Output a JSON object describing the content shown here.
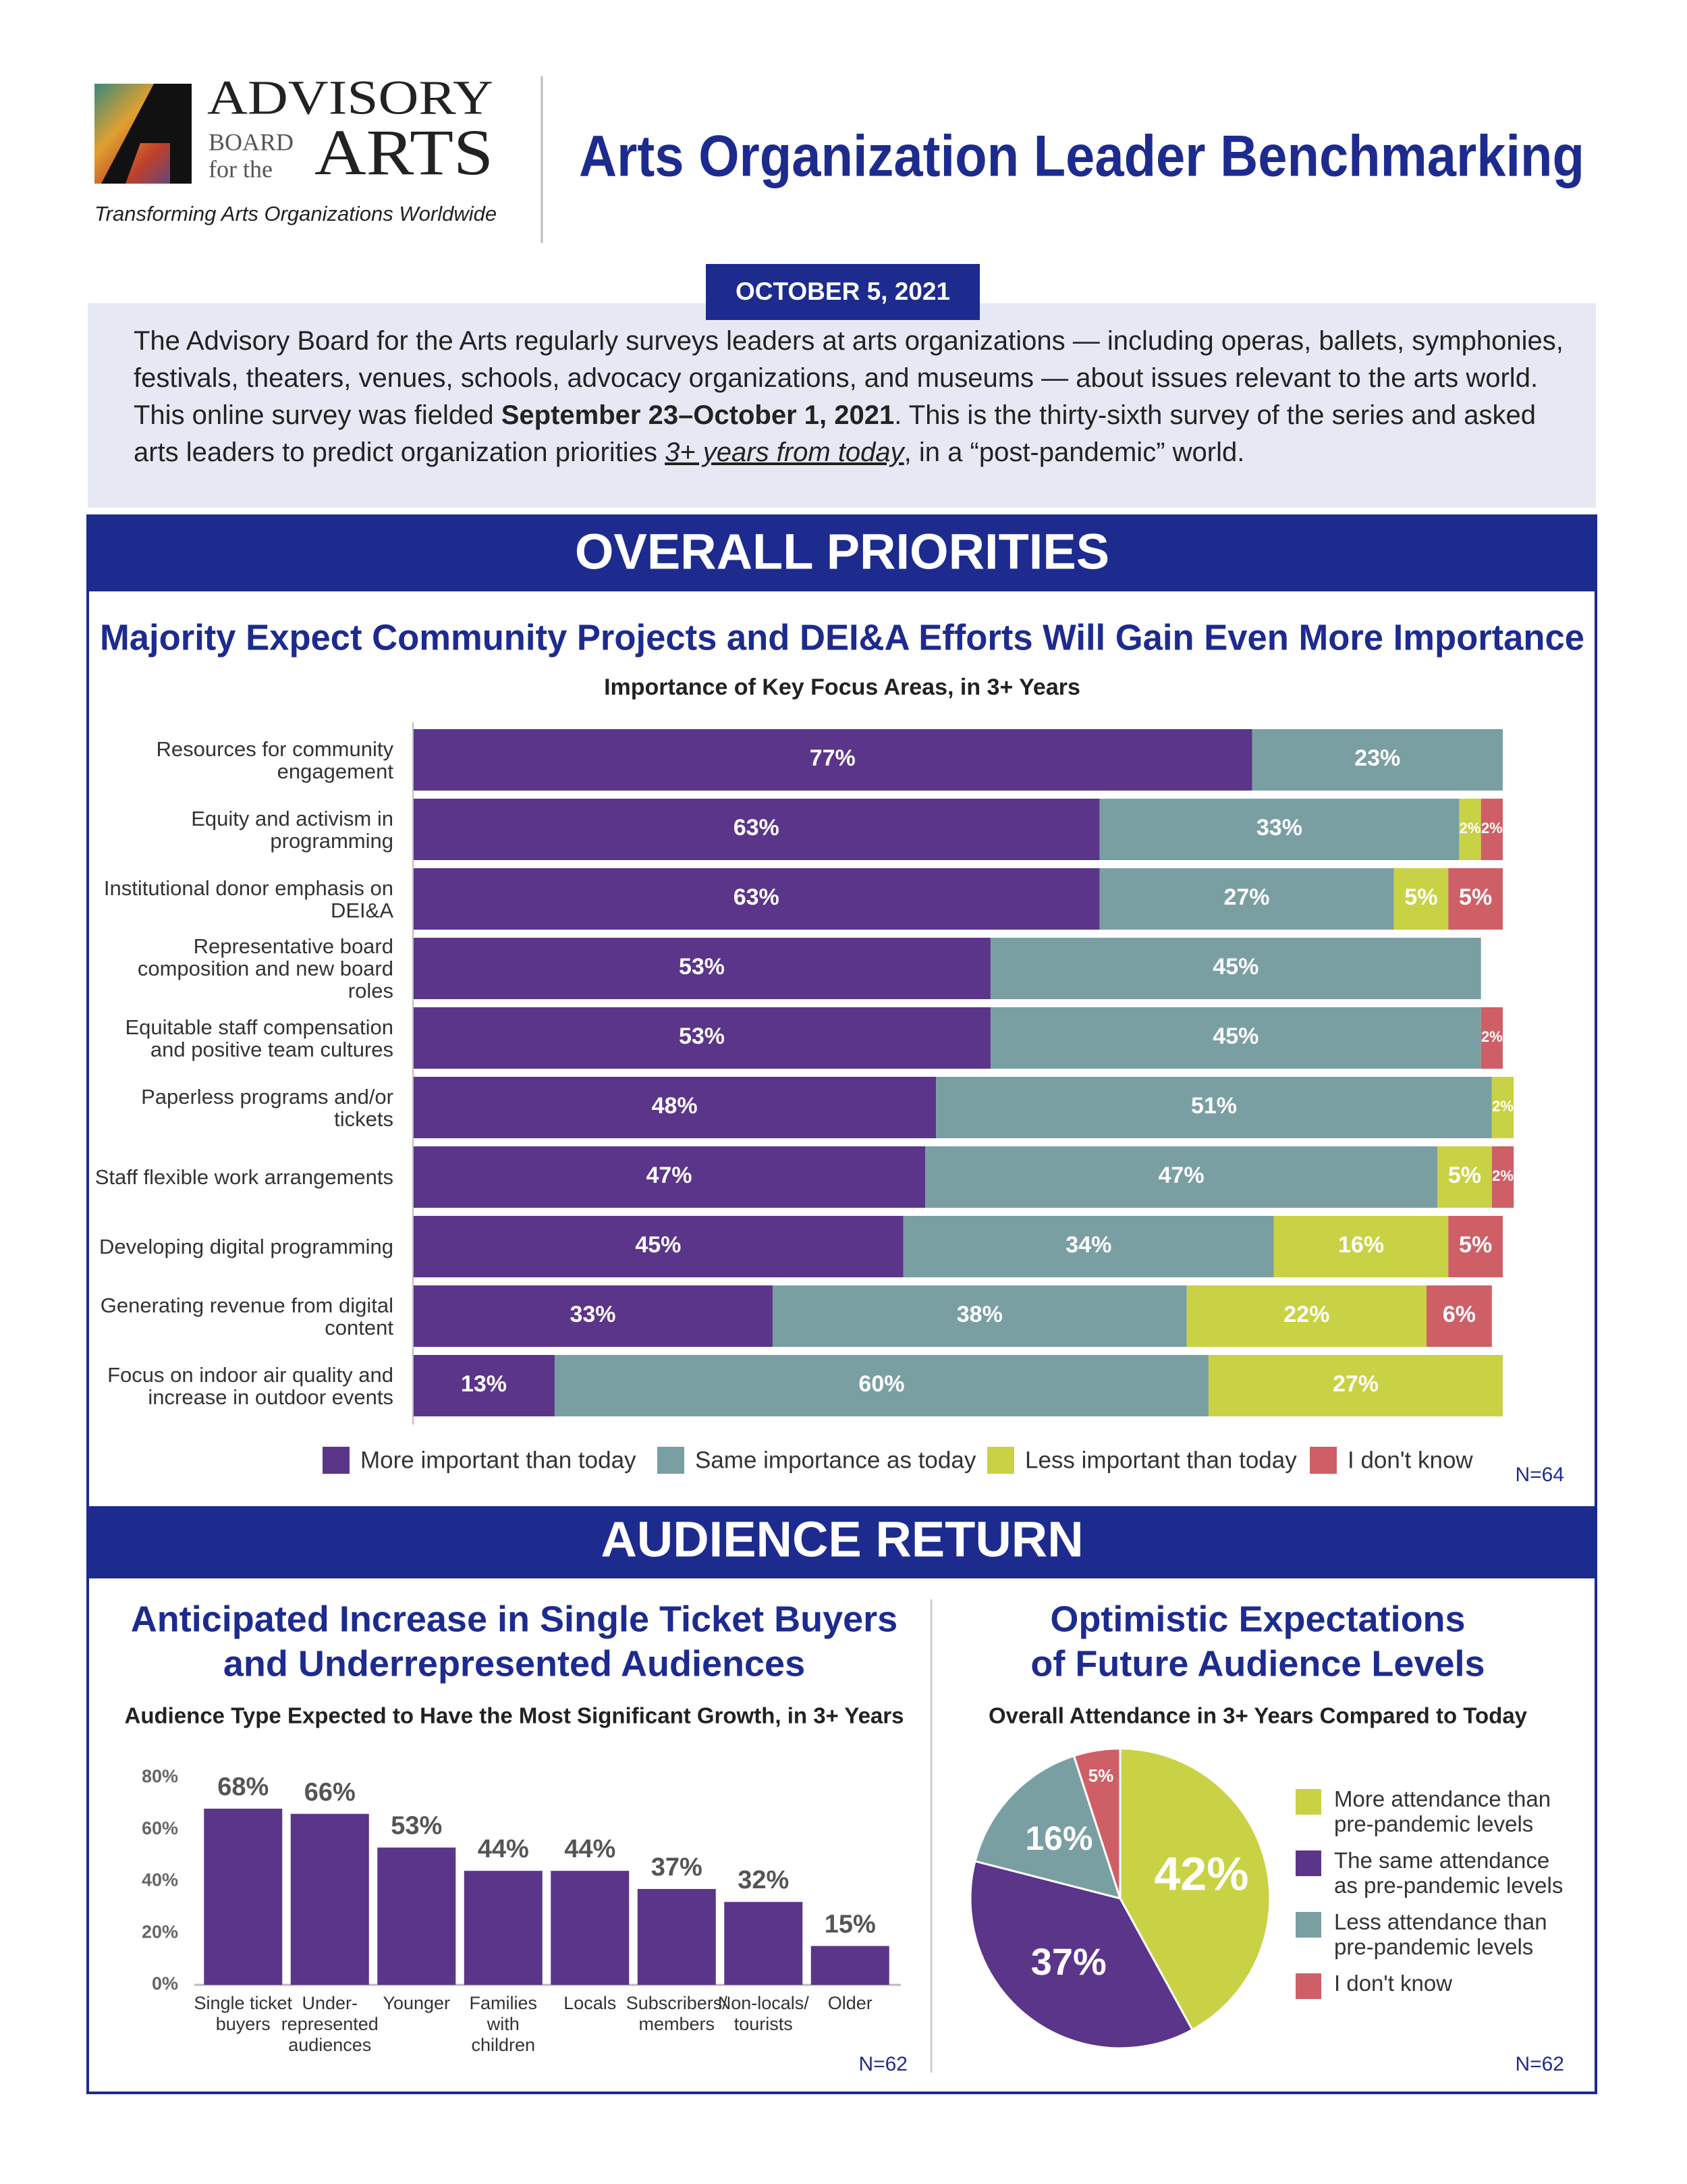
{
  "header": {
    "logo": {
      "line1": "ADVISORY",
      "line2a": "BOARD",
      "line2b": "for the",
      "line3": "ARTS"
    },
    "tagline": "Transforming Arts Organizations Worldwide",
    "title": "Arts Organization Leader Benchmarking",
    "date": "OCTOBER 5, 2021"
  },
  "intro": [
    "The Advisory Board for the Arts regularly surveys leaders at arts organizations — including  operas, ballets, symphonies, festivals, theaters, venues, schools, advocacy organizations, and museums — about issues relevant to the arts world. This online survey was fielded ",
    "September 23–October 1, 2021",
    ". This is the thirty-sixth survey of the series and asked arts leaders to predict organization priorities ",
    "3+ years from today",
    ", in a “post-pandemic” world."
  ],
  "sections": [
    "OVERALL PRIORITIES",
    "AUDIENCE RETURN"
  ],
  "chart_data": [
    {
      "type": "stacked-barh",
      "title": "Majority Expect Community Projects and DEI&A Efforts Will Gain Even More Importance",
      "subtitle": "Importance of Key Focus Areas, in 3+ Years",
      "categories": [
        "Resources for community engagement",
        "Equity and activism in programming",
        "Institutional donor emphasis on DEI&A",
        "Representative board composition and new board roles",
        "Equitable staff compensation and positive team cultures",
        "Paperless programs and/or tickets",
        "Staff flexible work arrangements",
        "Developing digital programming",
        "Generating revenue from digital content",
        "Focus on indoor air quality and increase in outdoor events"
      ],
      "xlim": [
        0,
        100
      ],
      "series": [
        {
          "name": "More important than today",
          "color": "#5b3589",
          "values": [
            77,
            63,
            63,
            53,
            53,
            48,
            47,
            45,
            33,
            13
          ],
          "value_labels": [
            "77%",
            "63%",
            "63%",
            "53%",
            "53%",
            "48%",
            "47%",
            "45%",
            "33%",
            "13%"
          ]
        },
        {
          "name": "Same importance as today",
          "color": "#7a9fa3",
          "values": [
            23,
            33,
            27,
            45,
            45,
            51,
            47,
            34,
            38,
            60
          ],
          "value_labels": [
            "23%",
            "33%",
            "27%",
            "45%",
            "45%",
            "51%",
            "47%",
            "34%",
            "38%",
            "60%"
          ]
        },
        {
          "name": "Less important than today",
          "color": "#c9d244",
          "values": [
            null,
            2,
            5,
            null,
            null,
            2,
            5,
            16,
            22,
            27
          ],
          "value_labels": [
            null,
            "2%",
            "5%",
            null,
            null,
            "2%",
            "5%",
            "16%",
            "22%",
            "27%"
          ]
        },
        {
          "name": "I don't know",
          "color": "#cf5f66",
          "values": [
            null,
            2,
            5,
            null,
            2,
            null,
            2,
            5,
            6,
            null
          ],
          "value_labels": [
            null,
            "2%",
            "5%",
            null,
            "2%",
            null,
            "2%",
            "5%",
            "6%",
            null
          ]
        }
      ],
      "note": "N=64"
    },
    {
      "type": "bar",
      "title": [
        "Anticipated Increase in Single Ticket Buyers",
        "and Underrepresented Audiences"
      ],
      "subtitle": "Audience Type Expected to Have the Most Significant Growth, in 3+ Years",
      "categories": [
        "Single ticket buyers",
        "Under-represented audiences",
        "Younger",
        "Families with children",
        "Locals",
        "Subscribers/ members",
        "Non-locals/ tourists",
        "Older"
      ],
      "values": [
        68,
        66,
        53,
        44,
        44,
        37,
        32,
        15
      ],
      "value_labels": [
        "68%",
        "66%",
        "53%",
        "44%",
        "44%",
        "37%",
        "32%",
        "15%"
      ],
      "color": "#5b3589",
      "ylim": [
        0,
        80
      ],
      "yticks": [
        {
          "value": 0,
          "label": "0%"
        },
        {
          "value": 20,
          "label": "20%"
        },
        {
          "value": 40,
          "label": "40%"
        },
        {
          "value": 60,
          "label": "60%"
        },
        {
          "value": 80,
          "label": "80%"
        }
      ],
      "note": "N=62"
    },
    {
      "type": "pie",
      "title": [
        "Optimistic Expectations",
        "of Future Audience Levels"
      ],
      "subtitle": "Overall Attendance in 3+ Years Compared to Today",
      "categories": [
        "More attendance than pre-pandemic levels",
        "The same attendance as pre-pandemic levels",
        "Less attendance than pre-pandemic levels",
        "I don't know"
      ],
      "values": [
        42,
        37,
        16,
        5
      ],
      "value_labels": [
        "42%",
        "37%",
        "16%",
        "5%"
      ],
      "colors": [
        "#c9d244",
        "#5b3589",
        "#7a9fa3",
        "#cf5f66"
      ],
      "note": "N=62"
    }
  ]
}
